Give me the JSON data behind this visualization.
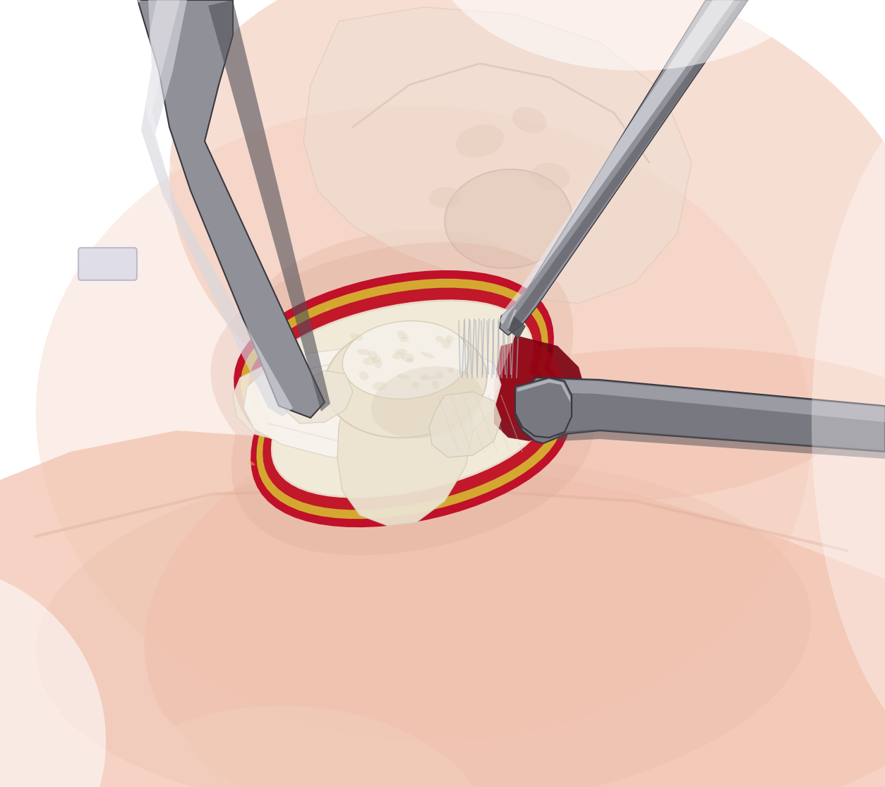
{
  "bg": "#ffffff",
  "skin1": "#f2c4b0",
  "skin2": "#e8b8a5",
  "skin3": "#dba898",
  "skin_dark": "#c99080",
  "bone_pale": "#f0e8d8",
  "bone_mid": "#e8dcc8",
  "bone_dark": "#d8c8a8",
  "pelvis_light": "#eeddd0",
  "pelvis_mid": "#e0c8b8",
  "pelvis_dark": "#ccb0a0",
  "fat_yellow": "#d4a830",
  "fat_yellow2": "#c89020",
  "fat_light": "#e8c060",
  "capsule_red": "#c0102a",
  "capsule_red2": "#a00818",
  "blood_dark": "#7a0010",
  "femur_white": "#f4f0e8",
  "femur_cream": "#ece4d0",
  "femur_tan": "#d8cdb8",
  "metal_base": "#787880",
  "metal_mid": "#909098",
  "metal_light": "#b8b8c0",
  "metal_highlight": "#d8d8e0",
  "metal_vlight": "#e8e8f0",
  "metal_dark": "#505058",
  "metal_vdark": "#383840",
  "tissue_white": "#f8f4ee",
  "tissue_cream": "#f0e8d8",
  "tissue_gray": "#d8d0c8",
  "shadow_gray": "#c0b8b0"
}
